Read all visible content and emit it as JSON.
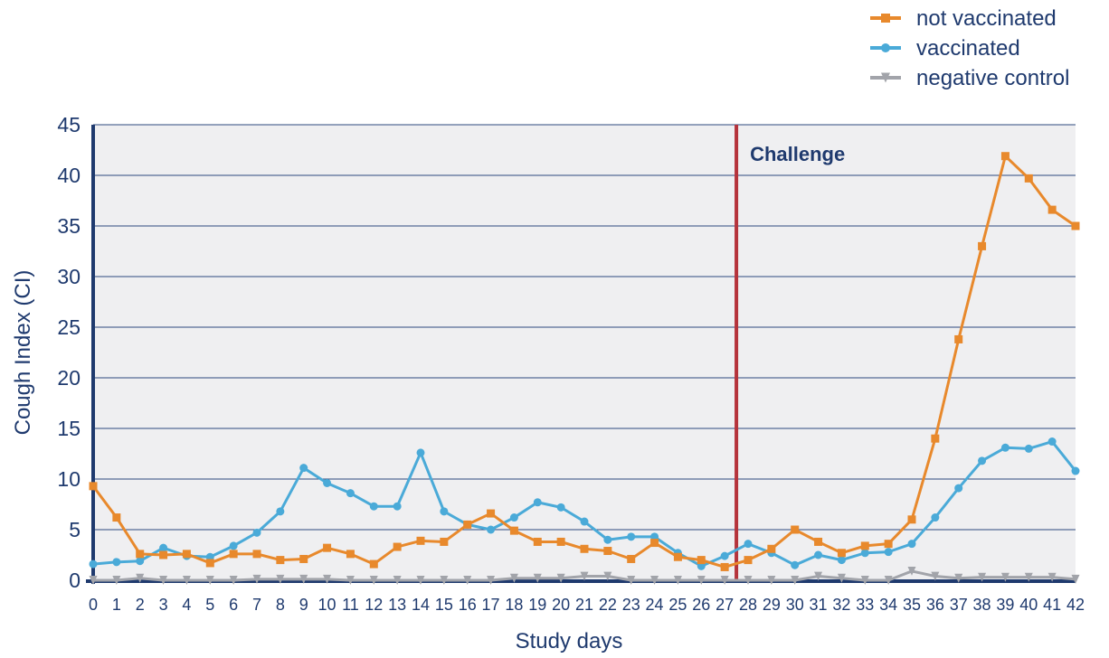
{
  "chart_data": {
    "type": "line",
    "xlabel": "Study days",
    "ylabel": "Cough Index (CI)",
    "ylim": [
      0,
      45
    ],
    "yticks": [
      0,
      5,
      10,
      15,
      20,
      25,
      30,
      35,
      40,
      45
    ],
    "x": [
      0,
      1,
      2,
      3,
      4,
      5,
      6,
      7,
      8,
      9,
      10,
      11,
      12,
      13,
      14,
      15,
      16,
      17,
      18,
      19,
      20,
      21,
      22,
      23,
      24,
      25,
      26,
      27,
      28,
      29,
      30,
      31,
      32,
      33,
      34,
      35,
      36,
      37,
      38,
      39,
      40,
      41,
      42
    ],
    "grid": true,
    "legend_position": "top-right",
    "annotation": {
      "label": "Challenge",
      "x": 27.5,
      "color": "#b5333b"
    },
    "series": [
      {
        "name": "not vaccinated",
        "color": "#e8892c",
        "marker": "square",
        "values": [
          9.3,
          6.2,
          2.6,
          2.5,
          2.6,
          1.7,
          2.6,
          2.6,
          2.0,
          2.1,
          3.2,
          2.6,
          1.6,
          3.3,
          3.9,
          3.8,
          5.5,
          6.6,
          4.9,
          3.8,
          3.8,
          3.1,
          2.9,
          2.1,
          3.7,
          2.3,
          2.0,
          1.3,
          2.0,
          3.1,
          5.0,
          3.8,
          2.7,
          3.4,
          3.6,
          6.0,
          14.0,
          23.8,
          33.0,
          41.9,
          39.7,
          36.6,
          35.0
        ]
      },
      {
        "name": "vaccinated",
        "color": "#4aaad8",
        "marker": "circle",
        "values": [
          1.6,
          1.8,
          1.9,
          3.2,
          2.4,
          2.3,
          3.4,
          4.7,
          6.8,
          11.1,
          9.6,
          8.6,
          7.3,
          7.3,
          12.6,
          6.8,
          5.5,
          5.0,
          6.2,
          7.7,
          7.2,
          5.8,
          4.0,
          4.3,
          4.3,
          2.7,
          1.4,
          2.4,
          3.6,
          2.7,
          1.5,
          2.5,
          2.0,
          2.7,
          2.8,
          3.6,
          6.2,
          9.1,
          11.8,
          13.1,
          13.0,
          13.7,
          10.8
        ]
      },
      {
        "name": "negative control",
        "color": "#a2a4aa",
        "marker": "triangle-down",
        "values": [
          0.0,
          0.0,
          0.2,
          0.0,
          0.0,
          0.0,
          0.0,
          0.1,
          0.1,
          0.1,
          0.1,
          0.0,
          0.0,
          0.0,
          0.0,
          0.0,
          0.0,
          0.0,
          0.2,
          0.2,
          0.2,
          0.4,
          0.4,
          0.0,
          0.0,
          0.0,
          0.0,
          0.0,
          0.0,
          0.0,
          0.0,
          0.4,
          0.2,
          0.0,
          0.0,
          0.9,
          0.4,
          0.2,
          0.3,
          0.3,
          0.3,
          0.3,
          0.1
        ]
      }
    ]
  }
}
